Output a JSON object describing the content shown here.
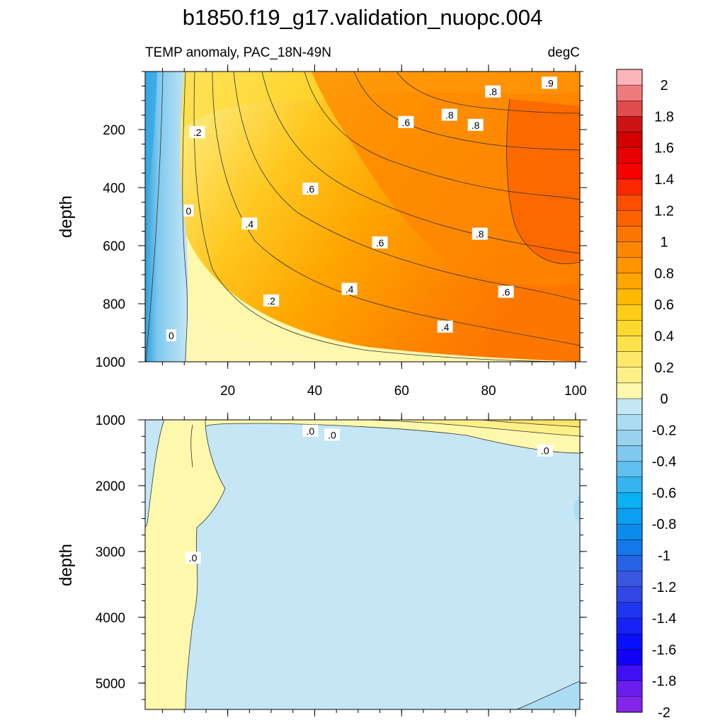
{
  "figure_title": "b1850.f19_g17.validation_nuopc.004",
  "chart_data": [
    {
      "type": "contour",
      "panel": "upper",
      "title": "",
      "left_subtitle": "TEMP anomaly, PAC_18N-49N",
      "right_subtitle": "degC",
      "xlabel": "",
      "ylabel": "depth",
      "x_ticks": [
        20,
        40,
        60,
        80,
        100
      ],
      "xlim": [
        1,
        101
      ],
      "y_ticks": [
        200,
        400,
        600,
        800,
        1000
      ],
      "ylim": [
        0,
        1000
      ],
      "y_inverted": true,
      "contour_labels": [
        {
          "text": ".2",
          "x": 13,
          "y": 210
        },
        {
          "text": "0",
          "x": 11,
          "y": 480
        },
        {
          "text": "0",
          "x": 7,
          "y": 910
        },
        {
          "text": ".6",
          "x": 39,
          "y": 405
        },
        {
          "text": ".4",
          "x": 25,
          "y": 525
        },
        {
          "text": ".2",
          "x": 30,
          "y": 790
        },
        {
          "text": ".6",
          "x": 55,
          "y": 590
        },
        {
          "text": ".4",
          "x": 48,
          "y": 750
        },
        {
          "text": ".4",
          "x": 70,
          "y": 880
        },
        {
          "text": ".6",
          "x": 61,
          "y": 175
        },
        {
          "text": ".8",
          "x": 71,
          "y": 150
        },
        {
          "text": ".8",
          "x": 77,
          "y": 185
        },
        {
          "text": ".8",
          "x": 81,
          "y": 70
        },
        {
          "text": ".9",
          "x": 94,
          "y": 40
        },
        {
          "text": ".8",
          "x": 78,
          "y": 560
        },
        {
          "text": ".6",
          "x": 84,
          "y": 760
        }
      ]
    },
    {
      "type": "contour",
      "panel": "lower",
      "title": "",
      "xlabel": "",
      "ylabel": "depth",
      "x_ticks": [
        20,
        40,
        60,
        80,
        100
      ],
      "xlim": [
        1,
        101
      ],
      "y_ticks": [
        1000,
        2000,
        3000,
        4000,
        5000
      ],
      "ylim": [
        1000,
        5400
      ],
      "y_inverted": true,
      "contour_labels": [
        {
          "text": ".0",
          "x": 39,
          "y": 1170
        },
        {
          "text": ".0",
          "x": 44,
          "y": 1230
        },
        {
          "text": ".0",
          "x": 93,
          "y": 1470
        },
        {
          "text": ".0",
          "x": 12,
          "y": 3100
        }
      ]
    }
  ],
  "colorbar": {
    "labels": [
      "2",
      "1.8",
      "1.6",
      "1.4",
      "1.2",
      "1",
      "0.8",
      "0.6",
      "0.4",
      "0.2",
      "0",
      "-0.2",
      "-0.4",
      "-0.6",
      "-0.8",
      "-1",
      "-1.2",
      "-1.4",
      "-1.6",
      "-1.8",
      "-2"
    ],
    "colors_top_to_bottom": [
      "#fbb4b8",
      "#f07b7d",
      "#e04b4b",
      "#cd1414",
      "#d40000",
      "#e60000",
      "#f80000",
      "#fb2800",
      "#fc4d00",
      "#fc6300",
      "#fd7700",
      "#fd8600",
      "#fe9300",
      "#fea600",
      "#ffb900",
      "#fecb16",
      "#fed82d",
      "#fee24a",
      "#fee967",
      "#fef088",
      "#fef8ad",
      "#c4e6f5",
      "#abddf2",
      "#99d2ef",
      "#7fc9ee",
      "#5fbfee",
      "#36b4ef",
      "#0ab1f3",
      "#0a9ff0",
      "#0b8ced",
      "#1477ea",
      "#2763e6",
      "#3a57e0",
      "#3347e6",
      "#1f36f0",
      "#1922f6",
      "#0a10fd",
      "#1000fa",
      "#4010f4",
      "#6a1eee",
      "#8225e8"
    ]
  }
}
